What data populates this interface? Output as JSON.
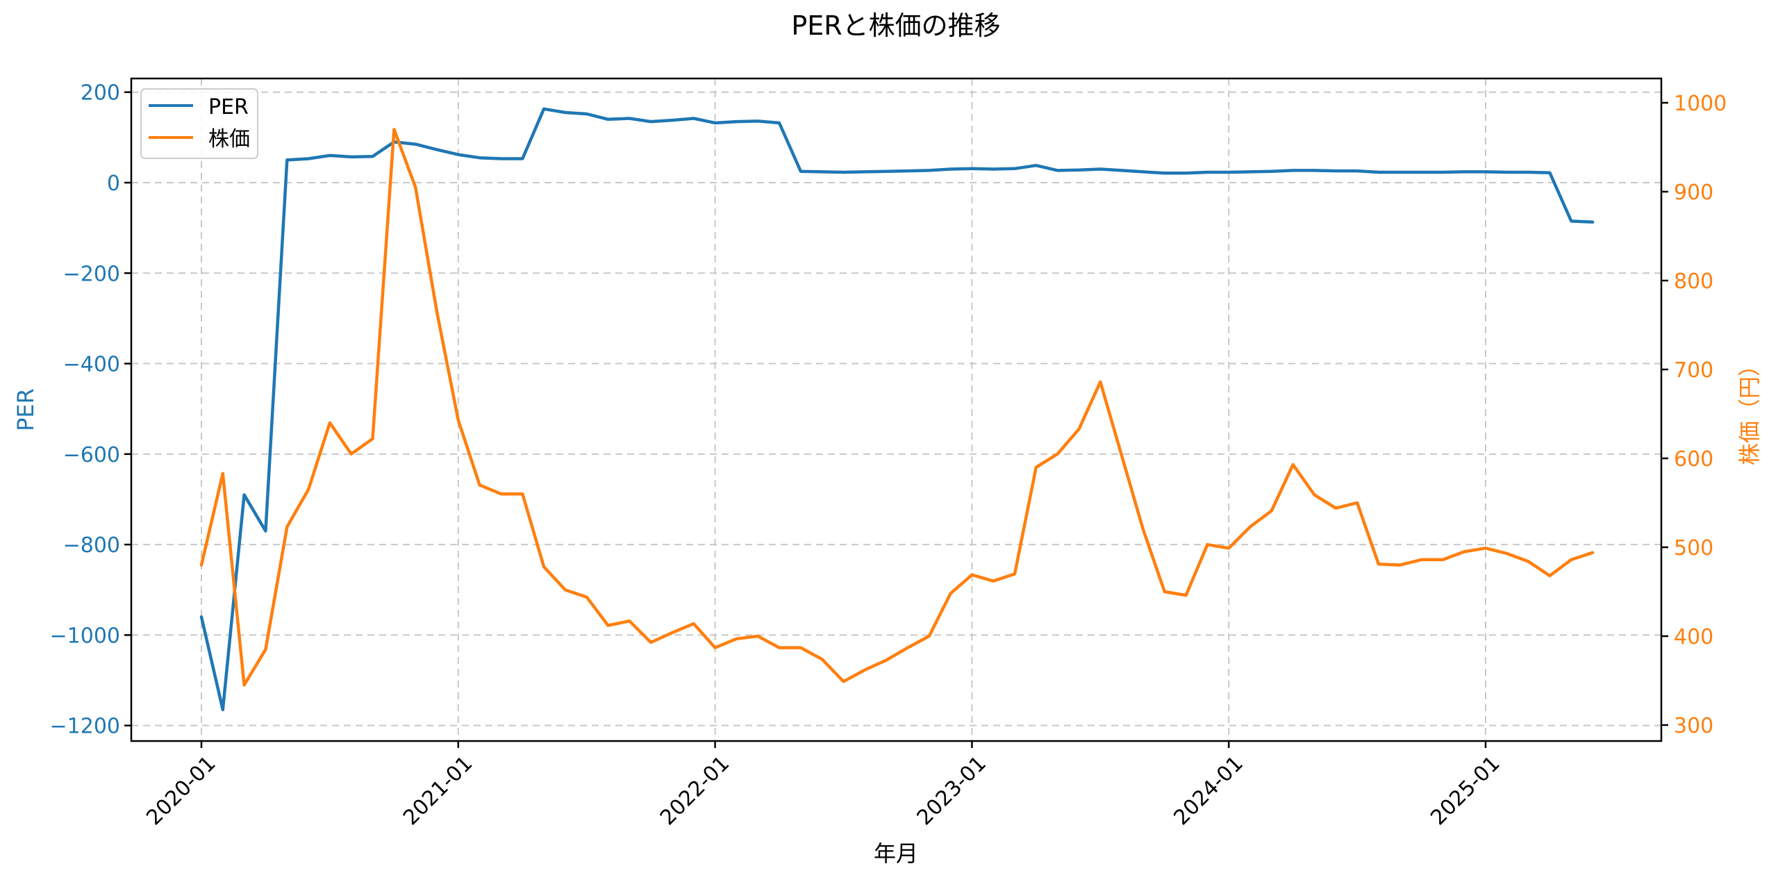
{
  "chart_data": {
    "type": "line",
    "title": "PERと株価の推移",
    "xlabel": "年月",
    "ylabel": "PER",
    "ylabel_right": "株価（円）",
    "ylim": [
      -1230,
      225
    ],
    "ylim_right": [
      283,
      1033
    ],
    "yticks": [
      200,
      0,
      -200,
      -400,
      -600,
      -800,
      -1000,
      -1200
    ],
    "yticks_right": [
      1000,
      900,
      800,
      700,
      600,
      500,
      400,
      300
    ],
    "xticks": [
      "2020-01",
      "2021-01",
      "2022-01",
      "2023-01",
      "2024-01",
      "2025-01"
    ],
    "grid": true,
    "legend_position": "upper left",
    "x": [
      "2020-01",
      "2020-02",
      "2020-03",
      "2020-04",
      "2020-05",
      "2020-06",
      "2020-07",
      "2020-08",
      "2020-09",
      "2020-10",
      "2020-11",
      "2020-12",
      "2021-01",
      "2021-02",
      "2021-03",
      "2021-04",
      "2021-05",
      "2021-06",
      "2021-07",
      "2021-08",
      "2021-09",
      "2021-10",
      "2021-11",
      "2021-12",
      "2022-01",
      "2022-02",
      "2022-03",
      "2022-04",
      "2022-05",
      "2022-06",
      "2022-07",
      "2022-08",
      "2022-09",
      "2022-10",
      "2022-11",
      "2022-12",
      "2023-01",
      "2023-02",
      "2023-03",
      "2023-04",
      "2023-05",
      "2023-06",
      "2023-07",
      "2023-08",
      "2023-09",
      "2023-10",
      "2023-11",
      "2023-12",
      "2024-01",
      "2024-02",
      "2024-03",
      "2024-04",
      "2024-05",
      "2024-06",
      "2024-07",
      "2024-08",
      "2024-09",
      "2024-10",
      "2024-11",
      "2024-12",
      "2025-01",
      "2025-02",
      "2025-03",
      "2025-04",
      "2025-05",
      "2025-06"
    ],
    "series": [
      {
        "name": "PER",
        "axis": "left",
        "color": "#1f77b4",
        "values": [
          -960,
          -1165,
          -690,
          -770,
          50,
          53,
          60,
          57,
          58,
          90,
          85,
          73,
          62,
          55,
          53,
          53,
          163,
          155,
          152,
          140,
          142,
          135,
          138,
          142,
          132,
          135,
          136,
          132,
          25,
          24,
          23,
          24,
          25,
          26,
          27,
          30,
          31,
          30,
          31,
          38,
          27,
          28,
          30,
          27,
          24,
          21,
          21,
          23,
          23,
          24,
          25,
          27,
          27,
          26,
          26,
          23,
          23,
          23,
          23,
          24,
          24,
          23,
          23,
          22,
          -85,
          -87
        ]
      },
      {
        "name": "株価",
        "axis": "right",
        "color": "#ff7f0e",
        "values": [
          480,
          583,
          345,
          385,
          523,
          565,
          640,
          605,
          622,
          970,
          905,
          765,
          643,
          570,
          560,
          560,
          478,
          452,
          444,
          412,
          417,
          393,
          404,
          414,
          387,
          397,
          400,
          387,
          387,
          374,
          349,
          362,
          373,
          387,
          400,
          448,
          469,
          462,
          470,
          590,
          605,
          633,
          686,
          603,
          520,
          450,
          446,
          503,
          499,
          523,
          541,
          593,
          559,
          544,
          550,
          481,
          480,
          486,
          486,
          495,
          499,
          493,
          484,
          468,
          486,
          494
        ]
      }
    ]
  },
  "legend": {
    "items": [
      {
        "label": "PER",
        "color": "#1f77b4"
      },
      {
        "label": "株価",
        "color": "#ff7f0e"
      }
    ]
  }
}
